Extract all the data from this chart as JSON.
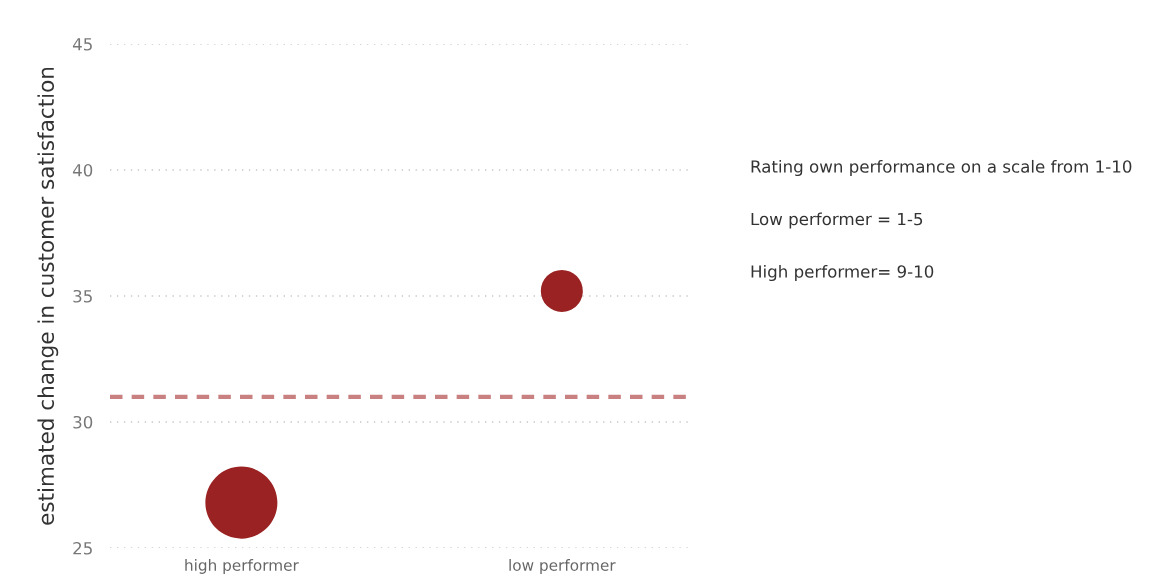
{
  "chart_data": {
    "type": "bubble",
    "ylabel": "estimated change in customer satisfaction",
    "categories": [
      "high performer",
      "low performer"
    ],
    "series": [
      {
        "color": "#9b2222",
        "values": [
          26.8,
          35.2
        ],
        "sizes": [
          1,
          0.34
        ]
      }
    ],
    "ylim": [
      25,
      45
    ],
    "yticks": [
      25,
      30,
      35,
      40,
      45
    ],
    "ref_lines": [
      {
        "axis": "y",
        "value": 31,
        "color": "#c98080",
        "line_style": "dashed"
      }
    ],
    "grid": "y",
    "annotations": [
      "Rating own performance on a scale from 1-10",
      "Low performer = 1-5",
      "High performer= 9-10"
    ]
  }
}
